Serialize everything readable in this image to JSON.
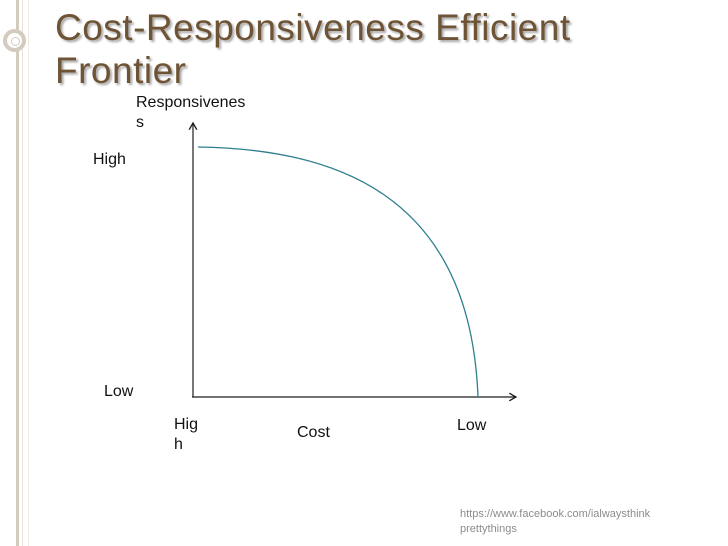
{
  "slide": {
    "title": "Cost-Responsiveness Efficient\nFrontier",
    "source_note": "https://www.facebook.com/ialwaysthink\nprettythings"
  },
  "diagram": {
    "y_axis_label": "Responsivenes\ns",
    "y_high_label": "High",
    "y_low_label": "Low",
    "x_axis_label": "Cost",
    "x_high_label": "Hig\nh",
    "x_low_label": "Low"
  },
  "colors": {
    "title": "#6e5335",
    "axis": "#1f1f1f",
    "curve": "#2f7f8f"
  }
}
